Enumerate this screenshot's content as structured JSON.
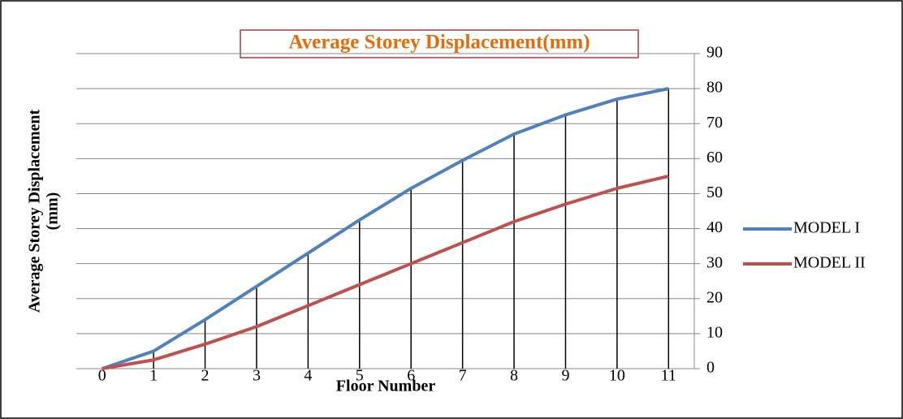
{
  "chart_data": {
    "type": "line",
    "title": "Average Storey Displacement(mm)",
    "xlabel": "Floor Number",
    "ylabel_lines": [
      "Average Storey Displacement",
      "(mm)"
    ],
    "categories": [
      "0",
      "1",
      "2",
      "3",
      "4",
      "5",
      "6",
      "7",
      "8",
      "9",
      "10",
      "11"
    ],
    "series": [
      {
        "name": "MODEL I",
        "color": "#4f81bd",
        "values": [
          0,
          5,
          14,
          23.5,
          33,
          42.5,
          51.5,
          59.5,
          67,
          72.5,
          77,
          80
        ],
        "drop_lines": true
      },
      {
        "name": "MODEL II",
        "color": "#c0504d",
        "values": [
          0,
          2.5,
          7,
          12,
          18,
          24,
          30,
          36,
          42,
          47,
          51.5,
          55
        ]
      }
    ],
    "ylim": [
      0,
      90
    ],
    "yticks": [
      0,
      10,
      20,
      30,
      40,
      50,
      60,
      70,
      80,
      90
    ],
    "y_axis_side": "right",
    "grid": true,
    "legend": "right"
  }
}
